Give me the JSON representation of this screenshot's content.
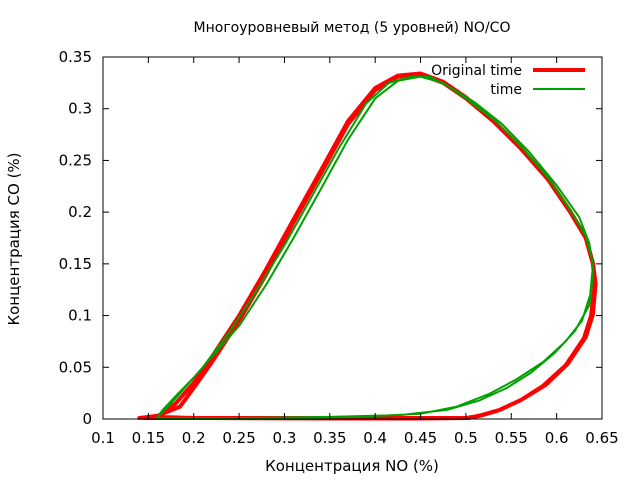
{
  "chart_data": {
    "type": "line",
    "title": "Многоуровневый метод (5 уровней) NO/CO",
    "xlabel": "Концентрация NO (%)",
    "ylabel": "Концентрация CO (%)",
    "xlim": [
      0.1,
      0.65
    ],
    "ylim": [
      0,
      0.35
    ],
    "x_ticks": [
      0.1,
      0.15,
      0.2,
      0.25,
      0.3,
      0.35,
      0.4,
      0.45,
      0.5,
      0.55,
      0.6,
      0.65
    ],
    "y_ticks": [
      0,
      0.05,
      0.1,
      0.15,
      0.2,
      0.25,
      0.3,
      0.35
    ],
    "x_tick_labels": [
      "0.1",
      "0.15",
      "0.2",
      "0.25",
      "0.3",
      "0.35",
      "0.4",
      "0.45",
      "0.5",
      "0.55",
      "0.6",
      "0.65"
    ],
    "y_tick_labels": [
      "0",
      "0.05",
      "0.1",
      "0.15",
      "0.2",
      "0.25",
      "0.3",
      "0.35"
    ],
    "grid": false,
    "legend_position": "top-right",
    "series": [
      {
        "name": "Original time",
        "color": "#ff0000",
        "line_width": 4,
        "x": [
          0.14,
          0.16,
          0.185,
          0.2,
          0.22,
          0.25,
          0.28,
          0.31,
          0.34,
          0.37,
          0.4,
          0.425,
          0.45,
          0.475,
          0.5,
          0.53,
          0.56,
          0.59,
          0.615,
          0.632,
          0.64,
          0.642,
          0.638,
          0.63,
          0.61,
          0.585,
          0.56,
          0.535,
          0.515,
          0.5,
          0.45,
          0.35,
          0.2,
          0.16,
          0.16,
          0.18,
          0.2,
          0.22,
          0.25,
          0.28,
          0.31,
          0.34,
          0.37,
          0.4,
          0.425,
          0.45,
          0.475,
          0.5,
          0.53,
          0.56,
          0.59,
          0.615,
          0.632,
          0.64,
          0.643,
          0.64,
          0.632,
          0.612,
          0.588,
          0.562,
          0.538,
          0.518,
          0.503,
          0.45,
          0.35,
          0.2,
          0.145
        ],
        "y": [
          0.001,
          0.003,
          0.012,
          0.03,
          0.055,
          0.095,
          0.14,
          0.19,
          0.237,
          0.285,
          0.318,
          0.331,
          0.333,
          0.325,
          0.31,
          0.288,
          0.262,
          0.232,
          0.2,
          0.175,
          0.15,
          0.13,
          0.1,
          0.078,
          0.052,
          0.032,
          0.018,
          0.008,
          0.003,
          0.001,
          0.0005,
          0.0005,
          0.001,
          0.002,
          0.002,
          0.015,
          0.035,
          0.06,
          0.1,
          0.145,
          0.193,
          0.24,
          0.288,
          0.32,
          0.332,
          0.334,
          0.326,
          0.311,
          0.289,
          0.263,
          0.233,
          0.201,
          0.176,
          0.151,
          0.131,
          0.101,
          0.079,
          0.053,
          0.033,
          0.019,
          0.009,
          0.004,
          0.001,
          0.001,
          0.001,
          0.001,
          0.001
        ]
      },
      {
        "name": "time",
        "color": "#00a000",
        "line_width": 2,
        "x": [
          0.16,
          0.175,
          0.19,
          0.21,
          0.24,
          0.27,
          0.3,
          0.33,
          0.36,
          0.39,
          0.415,
          0.44,
          0.46,
          0.48,
          0.51,
          0.54,
          0.57,
          0.6,
          0.625,
          0.636,
          0.64,
          0.637,
          0.628,
          0.61,
          0.585,
          0.555,
          0.525,
          0.49,
          0.45,
          0.38,
          0.3,
          0.2,
          0.16,
          0.165,
          0.18,
          0.2,
          0.22,
          0.25,
          0.28,
          0.31,
          0.34,
          0.37,
          0.4,
          0.425,
          0.45,
          0.475,
          0.5,
          0.53,
          0.56,
          0.59,
          0.615,
          0.632,
          0.639,
          0.64,
          0.636,
          0.62,
          0.598,
          0.572,
          0.545,
          0.515,
          0.48,
          0.43,
          0.35,
          0.25,
          0.165
        ],
        "y": [
          0.002,
          0.015,
          0.03,
          0.05,
          0.085,
          0.125,
          0.168,
          0.215,
          0.262,
          0.305,
          0.325,
          0.331,
          0.331,
          0.322,
          0.306,
          0.285,
          0.258,
          0.226,
          0.195,
          0.17,
          0.148,
          0.12,
          0.095,
          0.075,
          0.055,
          0.038,
          0.024,
          0.012,
          0.005,
          0.002,
          0.001,
          0.001,
          0.001,
          0.008,
          0.022,
          0.04,
          0.06,
          0.09,
          0.13,
          0.175,
          0.222,
          0.27,
          0.31,
          0.327,
          0.331,
          0.325,
          0.31,
          0.29,
          0.264,
          0.234,
          0.202,
          0.177,
          0.155,
          0.138,
          0.11,
          0.085,
          0.064,
          0.045,
          0.03,
          0.018,
          0.009,
          0.004,
          0.002,
          0.001,
          0.001
        ]
      }
    ]
  }
}
